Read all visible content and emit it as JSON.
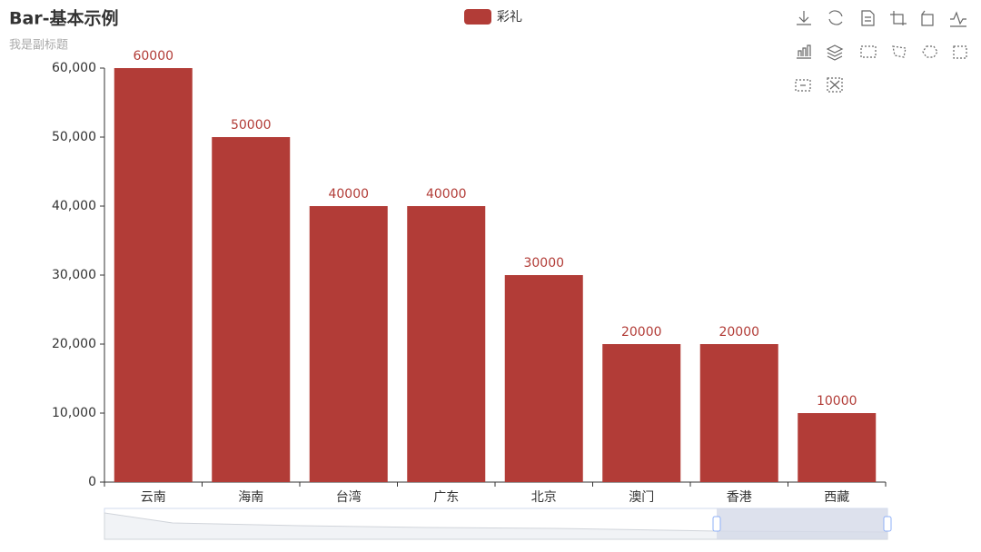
{
  "chart_data": {
    "type": "bar",
    "title": "Bar-基本示例",
    "subtitle": "我是副标题",
    "categories": [
      "云南",
      "海南",
      "台湾",
      "广东",
      "北京",
      "澳门",
      "香港",
      "西藏"
    ],
    "series": [
      {
        "name": "彩礼",
        "color": "#b23c37",
        "values": [
          60000,
          50000,
          40000,
          40000,
          30000,
          20000,
          20000,
          10000
        ]
      }
    ],
    "ylim": [
      0,
      60000
    ],
    "yticks": [
      0,
      {
        "value": 10000,
        "label": "10,000"
      },
      {
        "value": 20000,
        "label": "20,000"
      },
      {
        "value": 30000,
        "label": "30,000"
      },
      {
        "value": 40000,
        "label": "40,000"
      },
      {
        "value": 50000,
        "label": "50,000"
      },
      {
        "value": 60000,
        "label": "60,000"
      }
    ],
    "grid": false
  }
}
